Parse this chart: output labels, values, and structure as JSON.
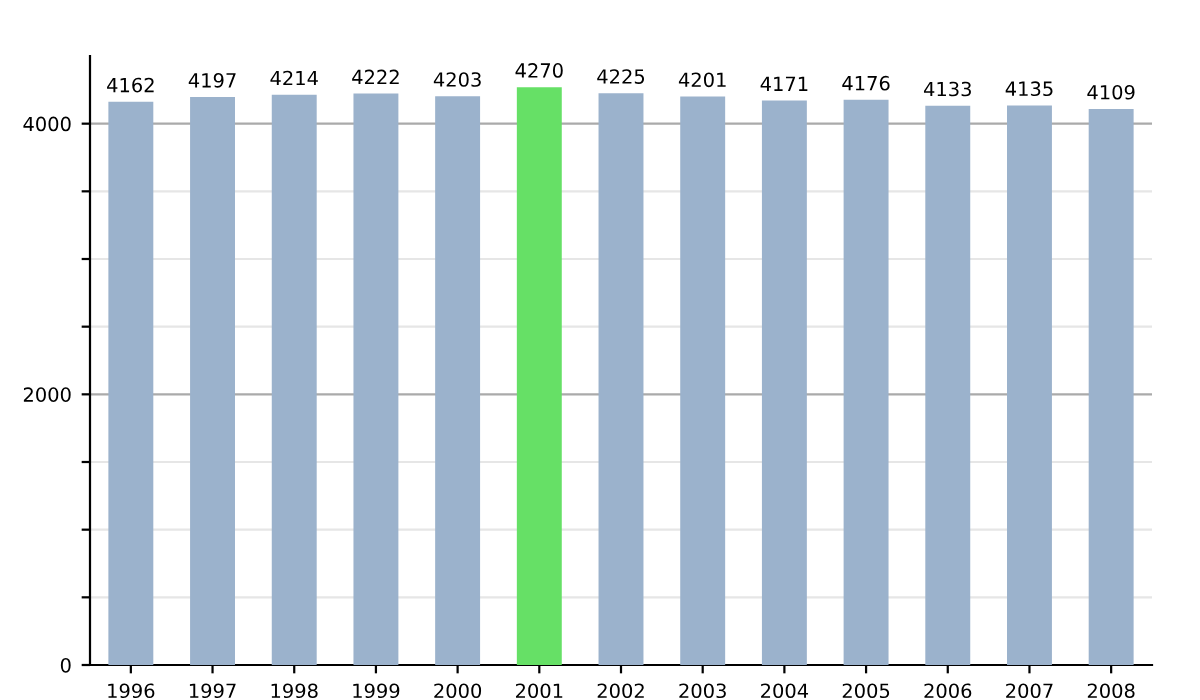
{
  "chart_data": {
    "type": "bar",
    "categories": [
      "1996",
      "1997",
      "1998",
      "1999",
      "2000",
      "2001",
      "2002",
      "2003",
      "2004",
      "2005",
      "2006",
      "2007",
      "2008"
    ],
    "values": [
      4162,
      4197,
      4214,
      4222,
      4203,
      4270,
      4225,
      4201,
      4171,
      4176,
      4133,
      4135,
      4109
    ],
    "colors": [
      "#9bb2cc",
      "#9bb2cc",
      "#9bb2cc",
      "#9bb2cc",
      "#9bb2cc",
      "#66e066",
      "#9bb2cc",
      "#9bb2cc",
      "#9bb2cc",
      "#9bb2cc",
      "#9bb2cc",
      "#9bb2cc",
      "#9bb2cc"
    ],
    "ylim": [
      0,
      4500
    ],
    "yticks": [
      0,
      {
        "value": 500,
        "label": null
      },
      {
        "value": 1000,
        "label": null
      },
      {
        "value": 1500,
        "label": null
      },
      2000,
      {
        "value": 2500,
        "label": null
      },
      {
        "value": 3000,
        "label": null
      },
      {
        "value": 3500,
        "label": null
      },
      4000
    ],
    "grid": "y",
    "data_labels": true
  }
}
